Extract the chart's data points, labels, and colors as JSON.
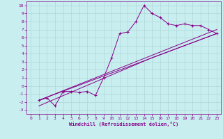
{
  "background_color": "#c8eef0",
  "grid_color": "#b0d8d8",
  "line_color": "#880088",
  "xlabel": "Windchill (Refroidissement éolien,°C)",
  "xlabel_color": "#880088",
  "tick_color": "#880088",
  "xlim": [
    -0.5,
    23.5
  ],
  "ylim": [
    -3.5,
    10.5
  ],
  "xticks": [
    0,
    1,
    2,
    3,
    4,
    5,
    6,
    7,
    8,
    9,
    10,
    11,
    12,
    13,
    14,
    15,
    16,
    17,
    18,
    19,
    20,
    21,
    22,
    23
  ],
  "yticks": [
    -3,
    -2,
    -1,
    0,
    1,
    2,
    3,
    4,
    5,
    6,
    7,
    8,
    9,
    10
  ],
  "series1_x": [
    1,
    2,
    3,
    4,
    5,
    6,
    7,
    8,
    9,
    10,
    11,
    12,
    13,
    14,
    15,
    16,
    17,
    18,
    19,
    20,
    21,
    22,
    23
  ],
  "series1_y": [
    -1.8,
    -1.5,
    -2.5,
    -0.7,
    -0.7,
    -0.8,
    -0.7,
    -1.2,
    1.0,
    3.5,
    6.5,
    6.7,
    8.0,
    10.0,
    9.0,
    8.5,
    7.7,
    7.5,
    7.7,
    7.5,
    7.5,
    7.0,
    6.5
  ],
  "line2_x": [
    1,
    23
  ],
  "line2_y": [
    -1.8,
    7.0
  ],
  "line3_x": [
    1,
    23
  ],
  "line3_y": [
    -1.8,
    6.5
  ],
  "line4_x": [
    1,
    15,
    23
  ],
  "line4_y": [
    -2.5,
    3.5,
    6.5
  ]
}
